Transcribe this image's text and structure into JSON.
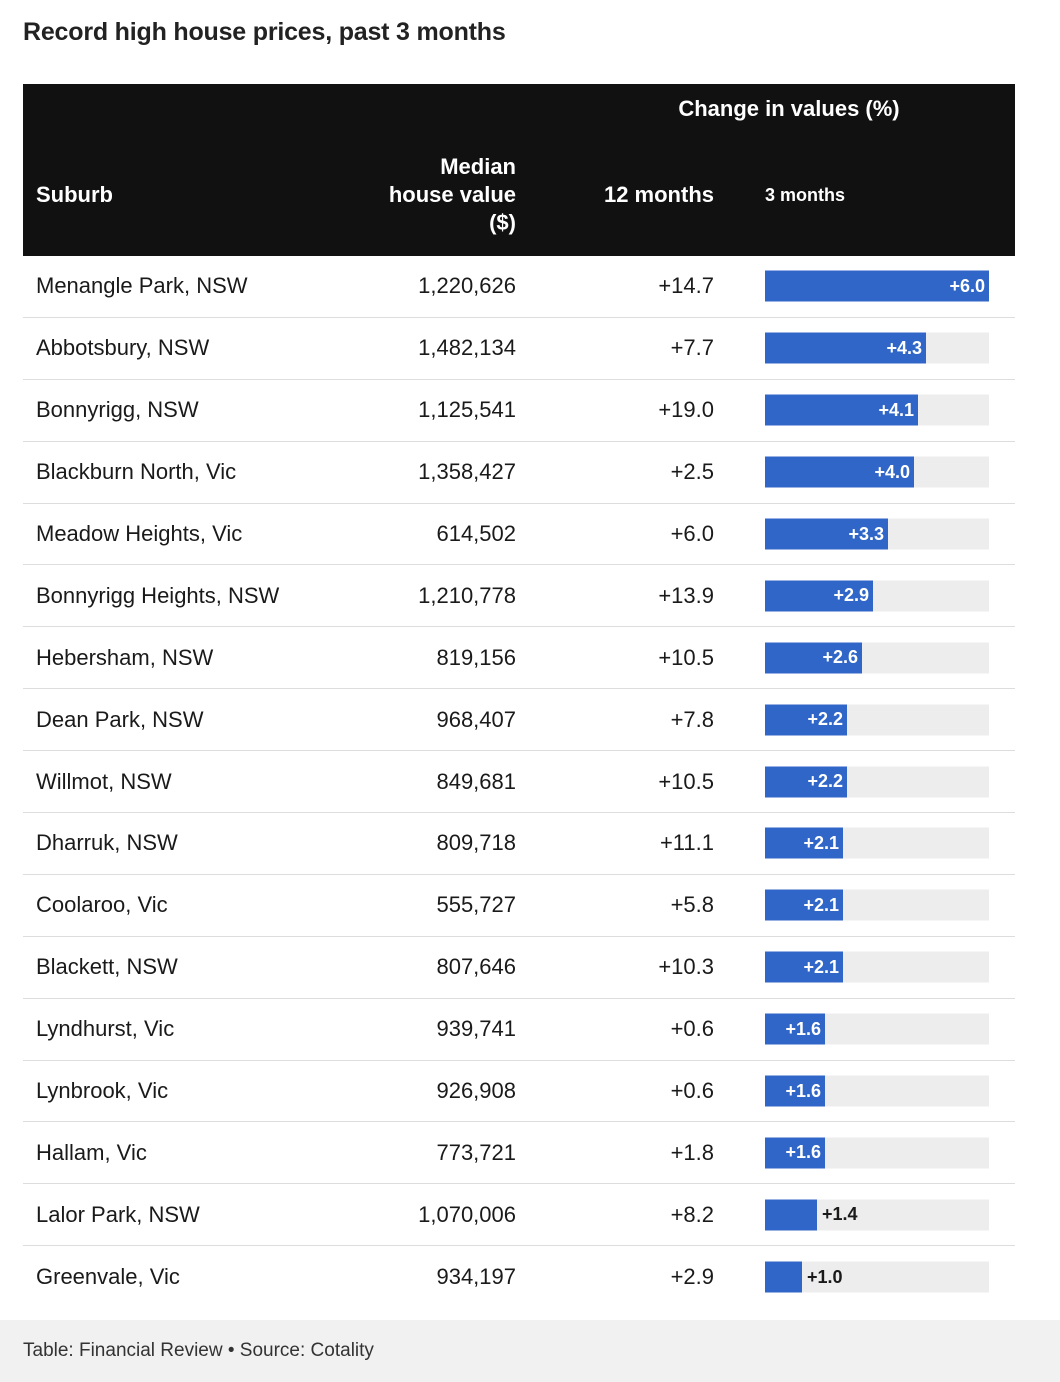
{
  "title": "Record high house prices, past 3 months",
  "header": {
    "change_group": "Change in values (%)",
    "suburb": "Suburb",
    "median_line1": "Median",
    "median_line2": "house value",
    "median_line3": "($)",
    "twelve_months": "12 months",
    "three_months": "3 months"
  },
  "colors": {
    "header_bg": "#111111",
    "bar": "#2f66c7",
    "bar_track": "#ededed",
    "footer_bg": "#f1f1f1"
  },
  "chart_data": {
    "type": "table",
    "columns": [
      "Suburb",
      "Median house value ($)",
      "12 months",
      "3 months"
    ],
    "bar_column": "3 months",
    "bar_max": 6.0,
    "rows": [
      {
        "suburb": "Menangle Park, NSW",
        "median": "1,220,626",
        "m12": "+14.7",
        "m3": 6.0,
        "m3_label": "+6.0"
      },
      {
        "suburb": "Abbotsbury, NSW",
        "median": "1,482,134",
        "m12": "+7.7",
        "m3": 4.3,
        "m3_label": "+4.3"
      },
      {
        "suburb": "Bonnyrigg, NSW",
        "median": "1,125,541",
        "m12": "+19.0",
        "m3": 4.1,
        "m3_label": "+4.1"
      },
      {
        "suburb": "Blackburn North, Vic",
        "median": "1,358,427",
        "m12": "+2.5",
        "m3": 4.0,
        "m3_label": "+4.0"
      },
      {
        "suburb": "Meadow Heights, Vic",
        "median": "614,502",
        "m12": "+6.0",
        "m3": 3.3,
        "m3_label": "+3.3"
      },
      {
        "suburb": "Bonnyrigg Heights, NSW",
        "median": "1,210,778",
        "m12": "+13.9",
        "m3": 2.9,
        "m3_label": "+2.9"
      },
      {
        "suburb": "Hebersham, NSW",
        "median": "819,156",
        "m12": "+10.5",
        "m3": 2.6,
        "m3_label": "+2.6"
      },
      {
        "suburb": "Dean Park, NSW",
        "median": "968,407",
        "m12": "+7.8",
        "m3": 2.2,
        "m3_label": "+2.2"
      },
      {
        "suburb": "Willmot, NSW",
        "median": "849,681",
        "m12": "+10.5",
        "m3": 2.2,
        "m3_label": "+2.2"
      },
      {
        "suburb": "Dharruk, NSW",
        "median": "809,718",
        "m12": "+11.1",
        "m3": 2.1,
        "m3_label": "+2.1"
      },
      {
        "suburb": "Coolaroo, Vic",
        "median": "555,727",
        "m12": "+5.8",
        "m3": 2.1,
        "m3_label": "+2.1"
      },
      {
        "suburb": "Blackett, NSW",
        "median": "807,646",
        "m12": "+10.3",
        "m3": 2.1,
        "m3_label": "+2.1"
      },
      {
        "suburb": "Lyndhurst, Vic",
        "median": "939,741",
        "m12": "+0.6",
        "m3": 1.6,
        "m3_label": "+1.6"
      },
      {
        "suburb": "Lynbrook, Vic",
        "median": "926,908",
        "m12": "+0.6",
        "m3": 1.6,
        "m3_label": "+1.6"
      },
      {
        "suburb": "Hallam, Vic",
        "median": "773,721",
        "m12": "+1.8",
        "m3": 1.6,
        "m3_label": "+1.6"
      },
      {
        "suburb": "Lalor Park, NSW",
        "median": "1,070,006",
        "m12": "+8.2",
        "m3": 1.4,
        "m3_label": "+1.4"
      },
      {
        "suburb": "Greenvale, Vic",
        "median": "934,197",
        "m12": "+2.9",
        "m3": 1.0,
        "m3_label": "+1.0"
      }
    ]
  },
  "footer": {
    "text": "Table: Financial Review • Source: Cotality"
  }
}
